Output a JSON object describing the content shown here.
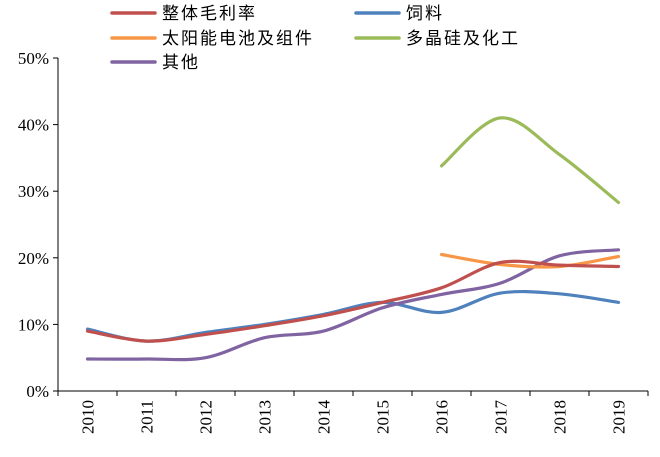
{
  "chart_data": {
    "type": "line",
    "title": "",
    "xlabel": "",
    "ylabel": "",
    "categories": [
      "2010",
      "2011",
      "2012",
      "2013",
      "2014",
      "2015",
      "2016",
      "2017",
      "2018",
      "2019"
    ],
    "y_ticks": [
      "0%",
      "10%",
      "20%",
      "30%",
      "40%",
      "50%"
    ],
    "ylim": [
      0,
      50
    ],
    "grid": false,
    "legend_position": "top",
    "series": [
      {
        "name": "整体毛利率",
        "color": "#C0504D",
        "values": [
          9.0,
          7.5,
          8.5,
          9.8,
          11.3,
          13.3,
          15.5,
          19.3,
          18.9,
          18.7
        ]
      },
      {
        "name": "饲料",
        "color": "#4F81BD",
        "values": [
          9.3,
          7.5,
          8.8,
          10.0,
          11.5,
          13.3,
          11.8,
          14.7,
          14.6,
          13.3
        ]
      },
      {
        "name": "太阳能电池及组件",
        "color": "#F79646",
        "values": [
          null,
          null,
          null,
          null,
          null,
          null,
          20.5,
          19.0,
          18.7,
          20.2
        ]
      },
      {
        "name": "多晶硅及化工",
        "color": "#9BBB59",
        "values": [
          null,
          null,
          null,
          null,
          null,
          null,
          33.8,
          41.0,
          35.5,
          28.3
        ]
      },
      {
        "name": "其他",
        "color": "#8064A2",
        "values": [
          4.8,
          4.8,
          5.0,
          8.0,
          9.0,
          12.5,
          14.5,
          16.2,
          20.3,
          21.2
        ]
      }
    ]
  }
}
